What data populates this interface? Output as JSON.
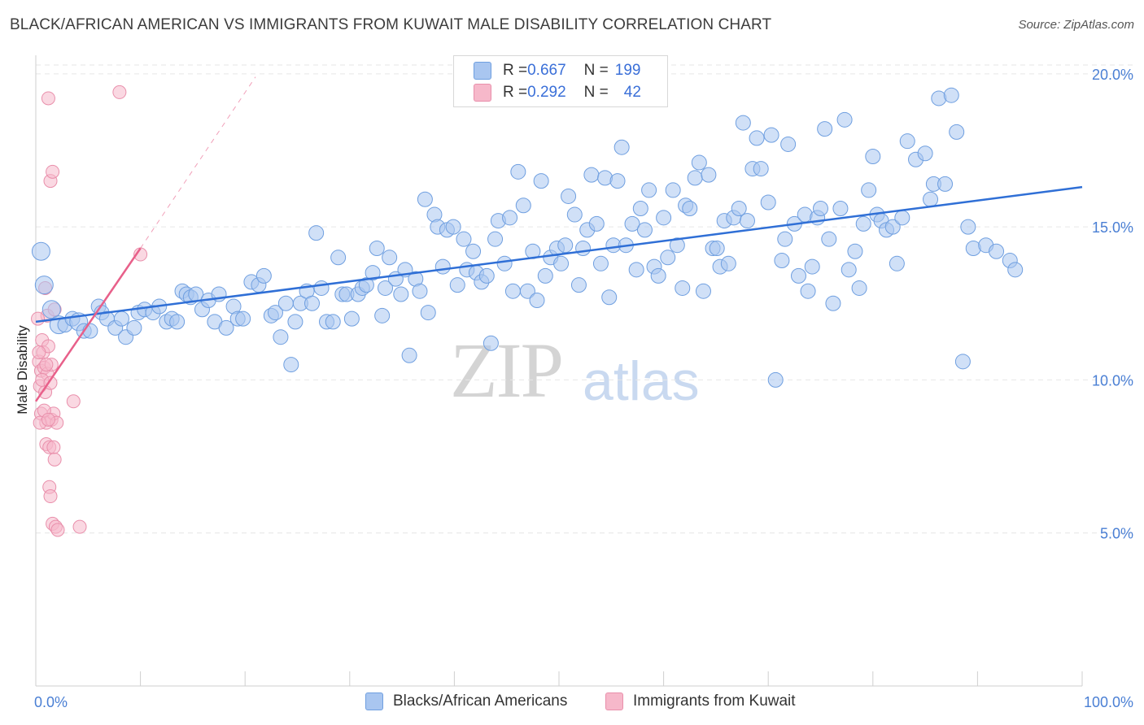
{
  "title": "BLACK/AFRICAN AMERICAN VS IMMIGRANTS FROM KUWAIT MALE DISABILITY CORRELATION CHART",
  "source": "Source: ZipAtlas.com",
  "watermark": {
    "zip": "ZIP",
    "atlas": "atlas"
  },
  "legend": {
    "rows": [
      {
        "r_label": "R = ",
        "r_value": "0.667",
        "n_label": "N = ",
        "n_value": "199",
        "color": "#a9c6f0"
      },
      {
        "r_label": "R = ",
        "r_value": "0.292",
        "n_label": "N = ",
        "n_value": "42",
        "color": "#f6b8ca"
      }
    ]
  },
  "bottom_legend": [
    {
      "label": "Blacks/African Americans",
      "color": "#a9c6f0"
    },
    {
      "label": "Immigrants from Kuwait",
      "color": "#f6b8ca"
    }
  ],
  "colors": {
    "blue_fill": "#a9c6f0",
    "blue_stroke": "#6f9fe0",
    "blue_line": "#2f6fd6",
    "pink_fill": "#f6b8ca",
    "pink_stroke": "#e98fab",
    "pink_line": "#e8608a",
    "grid": "#e6e6e6",
    "axis_text": "#4a7fd4"
  },
  "chart_data": {
    "type": "scatter",
    "title": "BLACK/AFRICAN AMERICAN VS IMMIGRANTS FROM KUWAIT MALE DISABILITY CORRELATION CHART",
    "xlabel": "",
    "ylabel": "Male Disability",
    "xlim": [
      0,
      100
    ],
    "ylim": [
      0,
      20.5
    ],
    "x_ticks": [
      0,
      100
    ],
    "x_tick_labels": [
      "0.0%",
      "100.0%"
    ],
    "y_ticks": [
      5,
      10,
      15,
      20
    ],
    "y_tick_labels": [
      "5.0%",
      "10.0%",
      "15.0%",
      "20.0%"
    ],
    "grid": "horizontal dashed",
    "legend_position": "top-center",
    "series": [
      {
        "name": "Blacks/African Americans",
        "color": "#a9c6f0",
        "trend": {
          "x0": 0,
          "y0": 11.9,
          "x1": 100,
          "y1": 16.3
        },
        "points": [
          [
            0.5,
            14.2
          ],
          [
            0.8,
            13.1
          ],
          [
            1.5,
            12.3
          ],
          [
            2.2,
            11.8
          ],
          [
            2.8,
            11.8
          ],
          [
            3.5,
            12.0
          ],
          [
            4.1,
            11.9
          ],
          [
            4.6,
            11.6
          ],
          [
            5.2,
            11.6
          ],
          [
            6.0,
            12.4
          ],
          [
            6.3,
            12.2
          ],
          [
            6.8,
            12.0
          ],
          [
            7.6,
            11.7
          ],
          [
            8.2,
            12.0
          ],
          [
            8.6,
            11.4
          ],
          [
            9.4,
            11.7
          ],
          [
            9.8,
            12.2
          ],
          [
            10.4,
            12.3
          ],
          [
            11.2,
            12.2
          ],
          [
            11.8,
            12.4
          ],
          [
            12.5,
            11.9
          ],
          [
            13.0,
            12.0
          ],
          [
            13.5,
            11.9
          ],
          [
            14.0,
            12.9
          ],
          [
            14.4,
            12.8
          ],
          [
            14.8,
            12.7
          ],
          [
            15.3,
            12.8
          ],
          [
            15.9,
            12.3
          ],
          [
            16.5,
            12.6
          ],
          [
            17.1,
            11.9
          ],
          [
            17.5,
            12.8
          ],
          [
            18.2,
            11.7
          ],
          [
            18.9,
            12.4
          ],
          [
            19.3,
            12.0
          ],
          [
            19.8,
            12.0
          ],
          [
            20.6,
            13.2
          ],
          [
            21.3,
            13.1
          ],
          [
            21.8,
            13.4
          ],
          [
            22.5,
            12.1
          ],
          [
            22.9,
            12.2
          ],
          [
            23.4,
            11.4
          ],
          [
            23.9,
            12.5
          ],
          [
            24.4,
            10.5
          ],
          [
            24.8,
            11.9
          ],
          [
            25.3,
            12.5
          ],
          [
            25.9,
            12.9
          ],
          [
            26.4,
            12.5
          ],
          [
            26.8,
            14.8
          ],
          [
            27.3,
            13.0
          ],
          [
            27.8,
            11.9
          ],
          [
            28.4,
            11.9
          ],
          [
            28.9,
            14.0
          ],
          [
            29.3,
            12.8
          ],
          [
            29.7,
            12.8
          ],
          [
            30.2,
            12.0
          ],
          [
            30.8,
            12.8
          ],
          [
            31.2,
            13.0
          ],
          [
            31.6,
            13.1
          ],
          [
            32.2,
            13.5
          ],
          [
            32.6,
            14.3
          ],
          [
            33.1,
            12.1
          ],
          [
            33.4,
            13.0
          ],
          [
            33.8,
            14.0
          ],
          [
            34.4,
            13.3
          ],
          [
            34.9,
            12.8
          ],
          [
            35.3,
            13.6
          ],
          [
            35.7,
            10.8
          ],
          [
            36.3,
            13.3
          ],
          [
            36.7,
            12.9
          ],
          [
            37.2,
            15.9
          ],
          [
            37.5,
            12.2
          ],
          [
            38.1,
            15.4
          ],
          [
            38.4,
            15.0
          ],
          [
            38.9,
            13.7
          ],
          [
            39.3,
            14.9
          ],
          [
            39.9,
            15.0
          ],
          [
            40.3,
            13.1
          ],
          [
            40.9,
            14.6
          ],
          [
            41.2,
            13.6
          ],
          [
            41.8,
            14.2
          ],
          [
            42.1,
            13.5
          ],
          [
            42.6,
            13.2
          ],
          [
            43.1,
            13.4
          ],
          [
            43.5,
            11.2
          ],
          [
            43.9,
            14.6
          ],
          [
            44.2,
            15.2
          ],
          [
            44.8,
            13.8
          ],
          [
            45.3,
            15.3
          ],
          [
            45.6,
            12.9
          ],
          [
            46.1,
            16.8
          ],
          [
            46.6,
            15.7
          ],
          [
            47.0,
            12.9
          ],
          [
            47.5,
            14.2
          ],
          [
            47.9,
            12.6
          ],
          [
            48.3,
            16.5
          ],
          [
            48.7,
            13.4
          ],
          [
            49.2,
            14.0
          ],
          [
            49.8,
            14.3
          ],
          [
            50.2,
            13.8
          ],
          [
            50.6,
            14.4
          ],
          [
            50.9,
            16.0
          ],
          [
            51.5,
            15.4
          ],
          [
            51.9,
            13.1
          ],
          [
            52.3,
            14.3
          ],
          [
            52.7,
            14.9
          ],
          [
            53.1,
            16.7
          ],
          [
            53.6,
            15.1
          ],
          [
            54.0,
            13.8
          ],
          [
            54.4,
            16.6
          ],
          [
            54.8,
            12.7
          ],
          [
            55.2,
            14.4
          ],
          [
            55.6,
            16.5
          ],
          [
            56.0,
            17.6
          ],
          [
            56.4,
            14.4
          ],
          [
            57.0,
            15.1
          ],
          [
            57.4,
            13.6
          ],
          [
            57.8,
            15.6
          ],
          [
            58.2,
            14.9
          ],
          [
            58.6,
            16.2
          ],
          [
            59.1,
            13.7
          ],
          [
            59.5,
            13.4
          ],
          [
            60.0,
            15.3
          ],
          [
            60.4,
            14.0
          ],
          [
            60.9,
            16.2
          ],
          [
            61.3,
            14.4
          ],
          [
            61.8,
            13.0
          ],
          [
            62.1,
            15.7
          ],
          [
            62.5,
            15.6
          ],
          [
            63.0,
            16.6
          ],
          [
            63.4,
            17.1
          ],
          [
            63.8,
            12.9
          ],
          [
            64.3,
            16.7
          ],
          [
            64.7,
            14.3
          ],
          [
            65.1,
            14.3
          ],
          [
            65.4,
            13.7
          ],
          [
            65.8,
            15.2
          ],
          [
            66.2,
            13.8
          ],
          [
            66.7,
            15.3
          ],
          [
            67.2,
            15.6
          ],
          [
            67.6,
            18.4
          ],
          [
            68.0,
            15.2
          ],
          [
            68.5,
            16.9
          ],
          [
            68.9,
            17.9
          ],
          [
            69.3,
            16.9
          ],
          [
            70.0,
            15.8
          ],
          [
            70.3,
            18.0
          ],
          [
            70.7,
            10.0
          ],
          [
            71.3,
            13.9
          ],
          [
            71.6,
            14.6
          ],
          [
            71.9,
            17.7
          ],
          [
            72.5,
            15.1
          ],
          [
            72.9,
            13.4
          ],
          [
            73.5,
            15.4
          ],
          [
            73.8,
            12.9
          ],
          [
            74.2,
            13.7
          ],
          [
            74.7,
            15.3
          ],
          [
            75.0,
            15.6
          ],
          [
            75.4,
            18.2
          ],
          [
            75.8,
            14.6
          ],
          [
            76.2,
            12.5
          ],
          [
            76.9,
            15.6
          ],
          [
            77.3,
            18.5
          ],
          [
            77.7,
            13.6
          ],
          [
            78.3,
            14.2
          ],
          [
            78.7,
            13.0
          ],
          [
            79.1,
            15.1
          ],
          [
            79.6,
            16.2
          ],
          [
            80.0,
            17.3
          ],
          [
            80.4,
            15.4
          ],
          [
            80.8,
            15.2
          ],
          [
            81.3,
            14.9
          ],
          [
            81.9,
            15.0
          ],
          [
            82.3,
            13.8
          ],
          [
            82.8,
            15.3
          ],
          [
            83.3,
            17.8
          ],
          [
            84.1,
            17.2
          ],
          [
            85.0,
            17.4
          ],
          [
            85.5,
            15.9
          ],
          [
            85.8,
            16.4
          ],
          [
            86.3,
            19.2
          ],
          [
            86.9,
            16.4
          ],
          [
            87.5,
            19.3
          ],
          [
            88.0,
            18.1
          ],
          [
            88.6,
            10.6
          ],
          [
            89.1,
            15.0
          ],
          [
            89.6,
            14.3
          ],
          [
            90.8,
            14.4
          ],
          [
            91.8,
            14.2
          ],
          [
            93.1,
            13.9
          ],
          [
            93.6,
            13.6
          ]
        ]
      },
      {
        "name": "Immigrants from Kuwait",
        "color": "#f6b8ca",
        "trend": {
          "x0": 0,
          "y0": 9.3,
          "x1": 10,
          "y1": 14.3,
          "dashed_to": {
            "x": 21,
            "y": 19.9
          }
        },
        "points": [
          [
            0.3,
            10.6
          ],
          [
            0.4,
            9.8
          ],
          [
            0.5,
            10.3
          ],
          [
            0.5,
            8.9
          ],
          [
            0.6,
            11.3
          ],
          [
            0.7,
            10.9
          ],
          [
            0.8,
            10.4
          ],
          [
            0.9,
            13.0
          ],
          [
            0.9,
            9.6
          ],
          [
            1.0,
            8.6
          ],
          [
            1.0,
            7.9
          ],
          [
            1.1,
            10.2
          ],
          [
            1.1,
            12.1
          ],
          [
            1.2,
            19.2
          ],
          [
            1.2,
            11.1
          ],
          [
            1.3,
            7.8
          ],
          [
            1.3,
            6.5
          ],
          [
            1.4,
            6.2
          ],
          [
            1.4,
            16.5
          ],
          [
            1.5,
            8.7
          ],
          [
            1.5,
            10.5
          ],
          [
            1.6,
            5.3
          ],
          [
            1.6,
            16.8
          ],
          [
            1.7,
            8.9
          ],
          [
            1.7,
            7.8
          ],
          [
            1.8,
            12.3
          ],
          [
            1.8,
            7.4
          ],
          [
            1.9,
            5.2
          ],
          [
            2.0,
            8.6
          ],
          [
            2.1,
            5.1
          ],
          [
            0.2,
            12.0
          ],
          [
            0.3,
            10.9
          ],
          [
            0.4,
            8.6
          ],
          [
            0.6,
            10.0
          ],
          [
            0.8,
            9.0
          ],
          [
            1.0,
            10.5
          ],
          [
            1.2,
            8.7
          ],
          [
            1.4,
            9.9
          ],
          [
            3.6,
            9.3
          ],
          [
            4.2,
            5.2
          ],
          [
            8.0,
            19.4
          ],
          [
            10.0,
            14.1
          ]
        ]
      }
    ]
  }
}
